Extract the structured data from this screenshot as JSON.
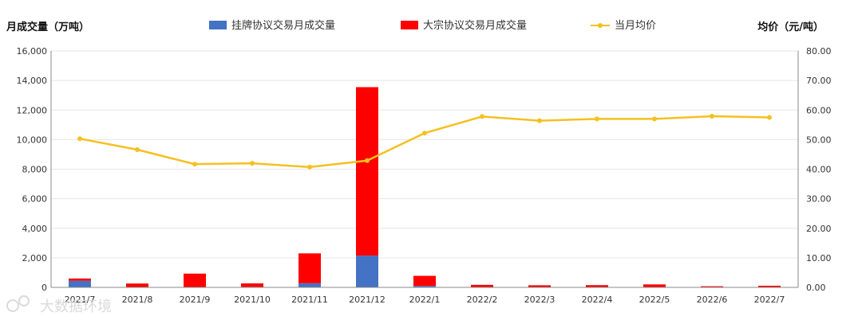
{
  "chart_data": {
    "type": "bar",
    "stacked": true,
    "title": "",
    "ylabel_left": "月成交量（万吨）",
    "ylabel_right": "均价（元/吨）",
    "categories": [
      "2021/7",
      "2021/8",
      "2021/9",
      "2021/10",
      "2021/11",
      "2021/12",
      "2022/1",
      "2022/2",
      "2022/3",
      "2022/4",
      "2022/5",
      "2022/6",
      "2022/7"
    ],
    "ylim_left": [
      0,
      16000
    ],
    "ylim_right": [
      0,
      80
    ],
    "yticks_left": [
      "0",
      "2,000",
      "4,000",
      "6,000",
      "8,000",
      "10,000",
      "12,000",
      "14,000",
      "16,000"
    ],
    "yticks_right": [
      "0.00",
      "10.00",
      "20.00",
      "30.00",
      "40.00",
      "50.00",
      "60.00",
      "70.00",
      "80.00"
    ],
    "grid": true,
    "legend_position": "top",
    "series": [
      {
        "name": "挂牌协议交易月成交量",
        "kind": "bar",
        "color": "#4472c4",
        "values": [
          450,
          20,
          10,
          30,
          280,
          2150,
          100,
          10,
          10,
          10,
          10,
          5,
          10
        ]
      },
      {
        "name": "大宗协议交易月成交量",
        "kind": "bar",
        "color": "#ff0000",
        "values": [
          150,
          240,
          920,
          240,
          2020,
          11400,
          680,
          160,
          130,
          140,
          190,
          70,
          100
        ]
      },
      {
        "name": "当月均价",
        "kind": "line",
        "axis": "right",
        "color": "#f5c020",
        "values": [
          50.3,
          46.6,
          41.7,
          42.0,
          40.7,
          42.9,
          52.2,
          57.8,
          56.4,
          57.0,
          57.0,
          57.9,
          57.5
        ]
      }
    ]
  },
  "watermark": "大数据环境"
}
